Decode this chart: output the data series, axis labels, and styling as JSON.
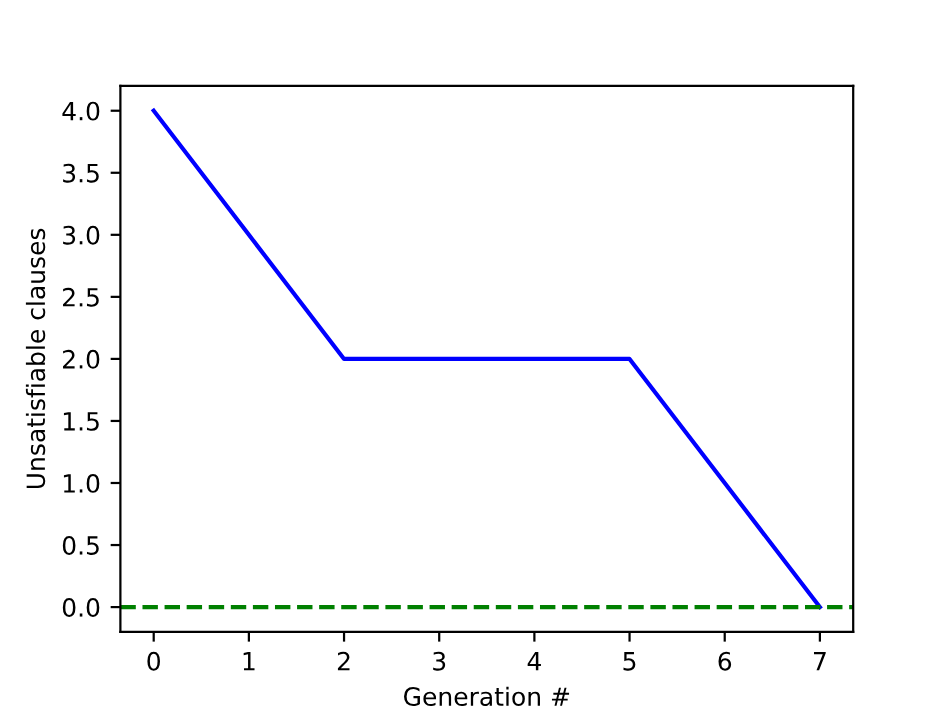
{
  "chart_data": {
    "type": "line",
    "xlabel": "Generation #",
    "ylabel": "Unsatisfiable clauses",
    "x": [
      0,
      1,
      2,
      3,
      4,
      5,
      6,
      7
    ],
    "series": [
      {
        "color": "#0000ff",
        "values": [
          4,
          3,
          2,
          2,
          2,
          2,
          1,
          0
        ]
      }
    ],
    "xlim": [
      -0.35,
      7.35
    ],
    "ylim": [
      -0.2,
      4.2
    ],
    "xticks": [
      0,
      1,
      2,
      3,
      4,
      5,
      6,
      7
    ],
    "yticks": [
      {
        "value": 0,
        "label": "0.0"
      },
      {
        "value": 0.5,
        "label": "0.5"
      },
      {
        "value": 1,
        "label": "1.0"
      },
      {
        "value": 1.5,
        "label": "1.5"
      },
      {
        "value": 2,
        "label": "2.0"
      },
      {
        "value": 2.5,
        "label": "2.5"
      },
      {
        "value": 3,
        "label": "3.0"
      },
      {
        "value": 3.5,
        "label": "3.5"
      },
      {
        "value": 4,
        "label": "4.0"
      }
    ],
    "ref_lines": [
      {
        "axis": "y",
        "value": 0,
        "color": "#008000",
        "line_style": "dashed"
      }
    ],
    "grid": false,
    "legend": false
  }
}
